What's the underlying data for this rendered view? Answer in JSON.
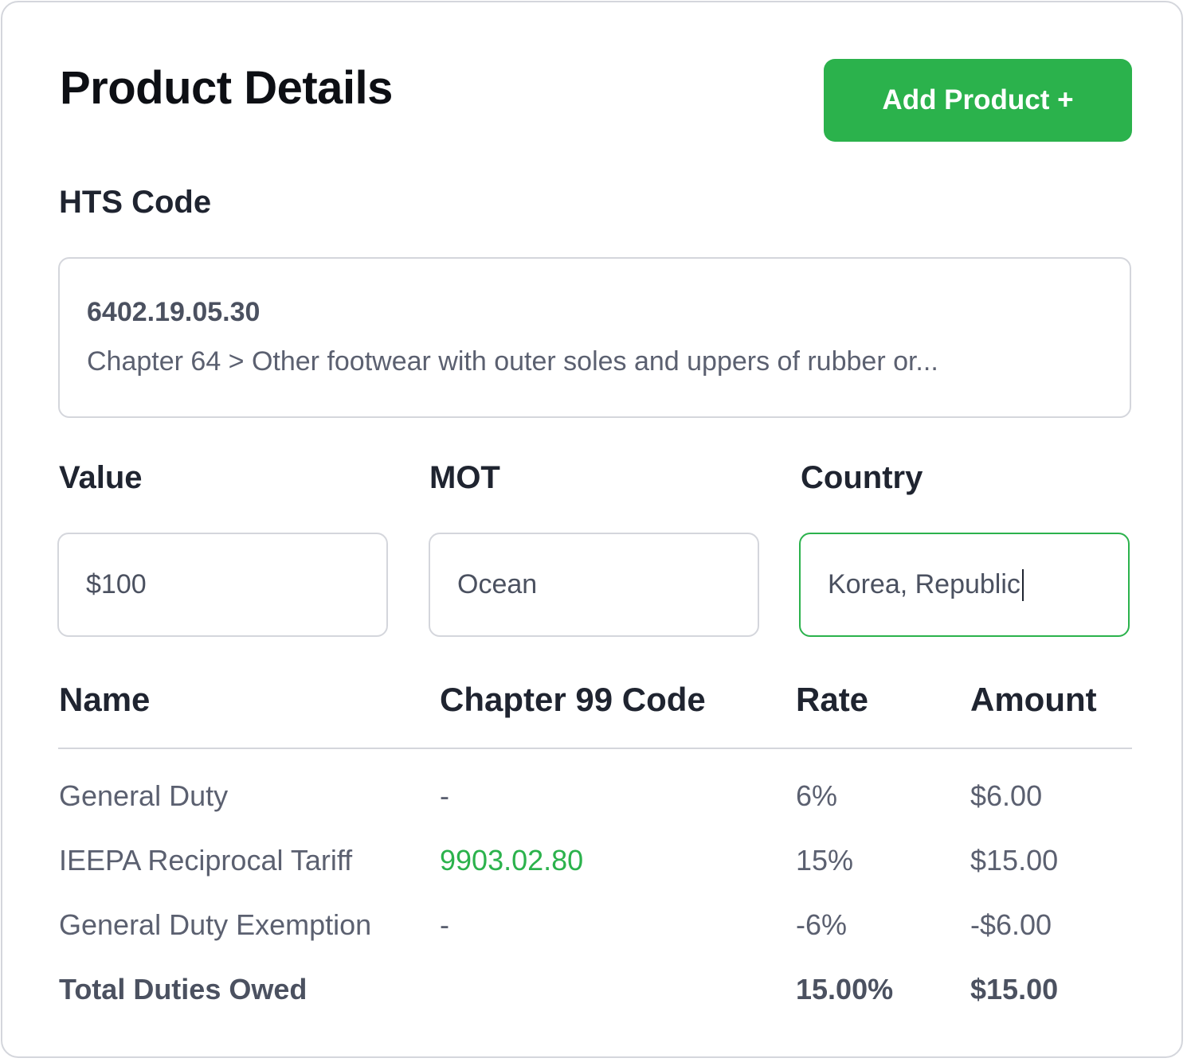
{
  "header": {
    "title": "Product Details",
    "add_button_label": "Add Product +"
  },
  "hts": {
    "label": "HTS Code",
    "code": "6402.19.05.30",
    "description": "Chapter 64 > Other footwear with outer soles and uppers of rubber or..."
  },
  "fields": {
    "value": {
      "label": "Value",
      "current": "$100"
    },
    "mot": {
      "label": "MOT",
      "current": "Ocean"
    },
    "country": {
      "label": "Country",
      "current": "Korea, Republic"
    }
  },
  "table": {
    "headers": [
      "Name",
      "Chapter 99 Code",
      "Rate",
      "Amount"
    ],
    "rows": [
      {
        "name": "General Duty",
        "code": "-",
        "rate": "6%",
        "amount": "$6.00"
      },
      {
        "name": "IEEPA Reciprocal Tariff",
        "code": "9903.02.80",
        "rate": "15%",
        "amount": "$15.00"
      },
      {
        "name": "General Duty Exemption",
        "code": "-",
        "rate": "-6%",
        "amount": "-$6.00"
      }
    ],
    "total": {
      "name": "Total Duties Owed",
      "rate": "15.00%",
      "amount": "$15.00"
    }
  },
  "colors": {
    "accent": "#2bb24c",
    "border": "#d4d6dc",
    "heading": "#1f2430",
    "muted": "#5b6070"
  }
}
